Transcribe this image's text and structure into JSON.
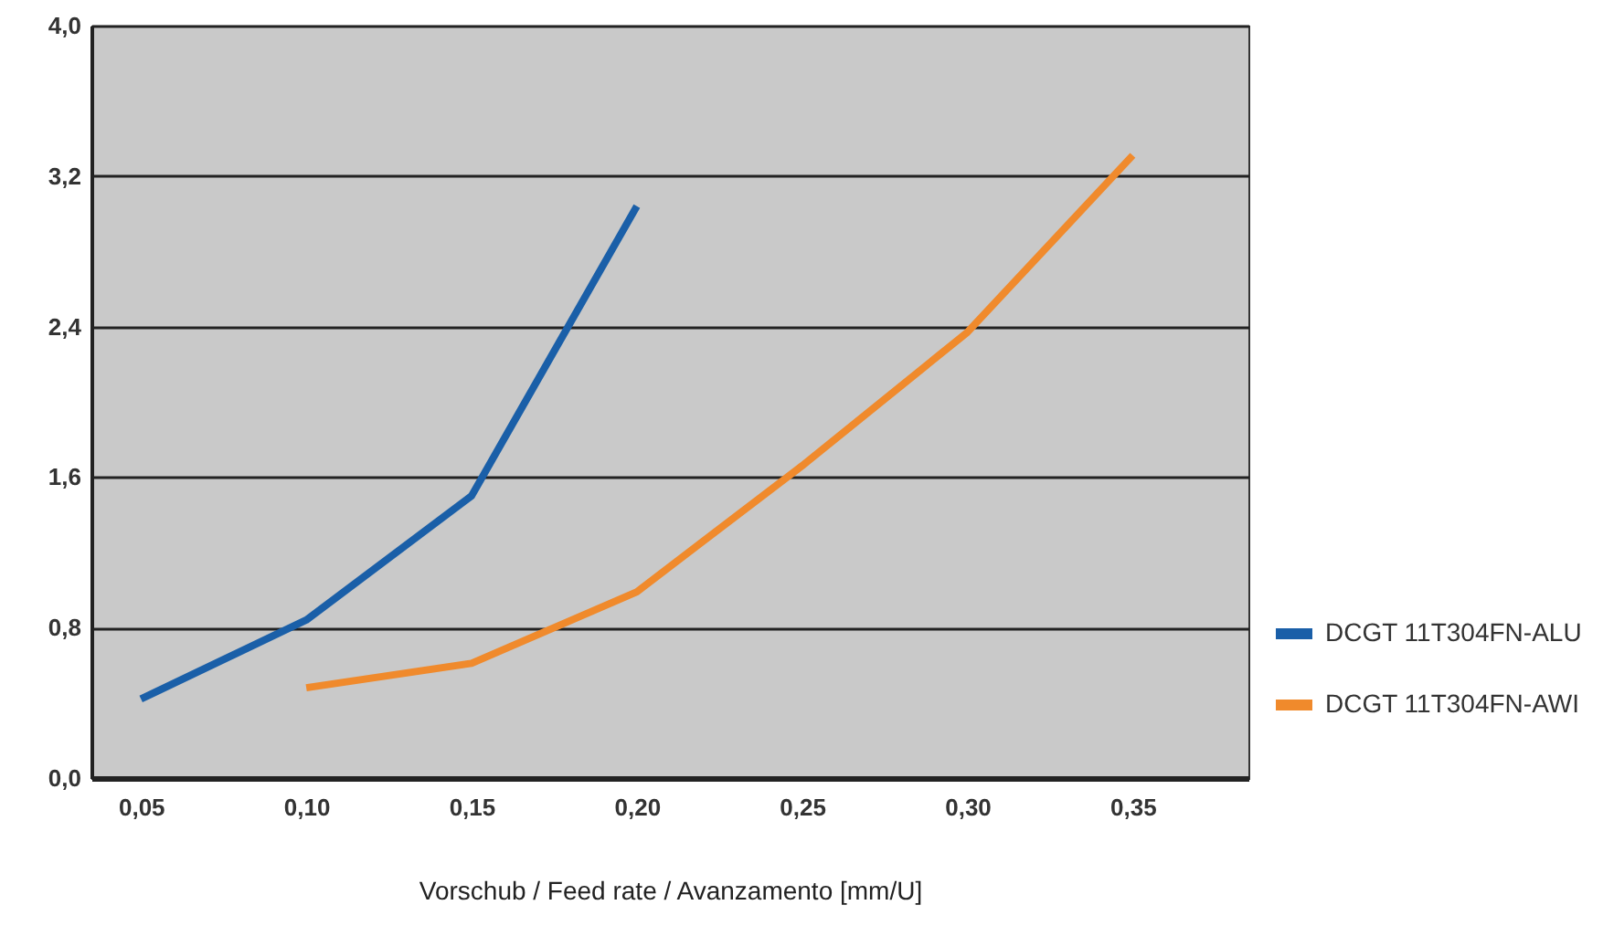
{
  "chart_data": {
    "type": "line",
    "xlabel": "Vorschub / Feed rate / Avanzamento [mm/U]",
    "series": [
      {
        "name": "DCGT 11T304FN-ALU",
        "color": "#1a5fa8",
        "x": [
          0.05,
          0.1,
          0.15,
          0.2
        ],
        "values": [
          0.42,
          0.84,
          1.5,
          3.04
        ]
      },
      {
        "name": "DCGT 11T304FN-AWI",
        "color": "#f08a2c",
        "x": [
          0.1,
          0.15,
          0.2,
          0.25,
          0.3,
          0.35
        ],
        "values": [
          0.48,
          0.61,
          0.99,
          1.66,
          2.37,
          3.31
        ]
      }
    ],
    "xlim": [
      0.035,
      0.385
    ],
    "xticks": [
      {
        "value": 0.05,
        "label": "0,05"
      },
      {
        "value": 0.1,
        "label": "0,10"
      },
      {
        "value": 0.15,
        "label": "0,15"
      },
      {
        "value": 0.2,
        "label": "0,20"
      },
      {
        "value": 0.25,
        "label": "0,25"
      },
      {
        "value": 0.3,
        "label": "0,30"
      },
      {
        "value": 0.35,
        "label": "0,35"
      }
    ],
    "ylim": [
      0,
      4.0
    ],
    "yticks": [
      {
        "value": 0,
        "label": "0,0"
      },
      {
        "value": 0.8,
        "label": "0,8"
      },
      {
        "value": 1.6,
        "label": "1,6"
      },
      {
        "value": 2.4,
        "label": "2,4"
      },
      {
        "value": 3.2,
        "label": "3,2"
      },
      {
        "value": 4.0,
        "label": "4,0"
      }
    ],
    "grid": "y",
    "legend": "right",
    "marker": "none",
    "line_style": "solid"
  }
}
